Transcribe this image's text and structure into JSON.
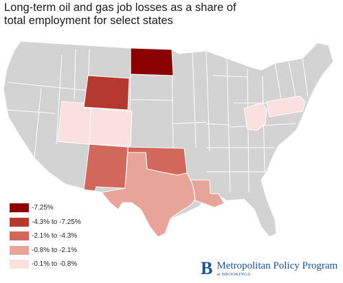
{
  "title": {
    "line1": "Long-term oil and gas job losses as a share of",
    "line2": "total employment for select states"
  },
  "colors": {
    "base_state": "#d3d3d3",
    "state_border": "#ffffff",
    "cat1": "#8b0000",
    "cat2": "#b5392f",
    "cat3": "#d2685c",
    "cat4": "#e9a49a",
    "cat5": "#fbe0e0",
    "brand": "#1d4f91"
  },
  "legend": [
    {
      "label": "-7.25%",
      "color": "#8b0000"
    },
    {
      "label": "-4.3% to -7.25%",
      "color": "#b5392f"
    },
    {
      "label": "-2.1% to -4.3%",
      "color": "#d2685c"
    },
    {
      "label": "-0.8% to -2.1%",
      "color": "#e9a49a"
    },
    {
      "label": "-0.1% to -0.8%",
      "color": "#fbe0e0"
    }
  ],
  "highlighted_states": [
    {
      "state": "North Dakota",
      "category": "-7.25%"
    },
    {
      "state": "Wyoming",
      "category": "-4.3% to -7.25%"
    },
    {
      "state": "New Mexico",
      "category": "-2.1% to -4.3%"
    },
    {
      "state": "Oklahoma",
      "category": "-2.1% to -4.3%"
    },
    {
      "state": "Texas",
      "category": "-0.8% to -2.1%"
    },
    {
      "state": "Louisiana",
      "category": "-0.8% to -2.1%"
    },
    {
      "state": "Utah",
      "category": "-0.1% to -0.8%"
    },
    {
      "state": "Colorado",
      "category": "-0.1% to -0.8%"
    },
    {
      "state": "Ohio",
      "category": "-0.1% to -0.8%"
    },
    {
      "state": "Pennsylvania",
      "category": "-0.1% to -0.8%"
    }
  ],
  "branding": {
    "mark": "B",
    "name": "Metropolitan Policy Program",
    "sub": "at BROOKINGS"
  }
}
